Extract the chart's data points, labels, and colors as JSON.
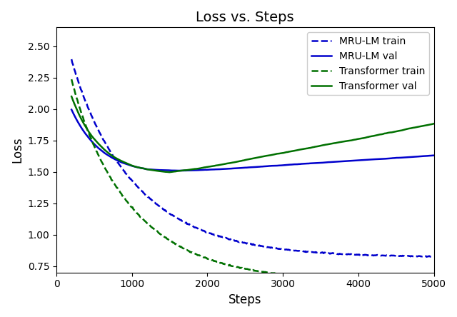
{
  "title": "Loss vs. Steps",
  "xlabel": "Steps",
  "ylabel": "Loss",
  "xlim": [
    0,
    5000
  ],
  "ylim": [
    0.7,
    2.65
  ],
  "blue_color": "#0000cc",
  "green_color": "#007000",
  "legend_entries": [
    "MRU-LM train",
    "MRU-LM val",
    "Transformer train",
    "Transformer val"
  ],
  "seed": 7
}
